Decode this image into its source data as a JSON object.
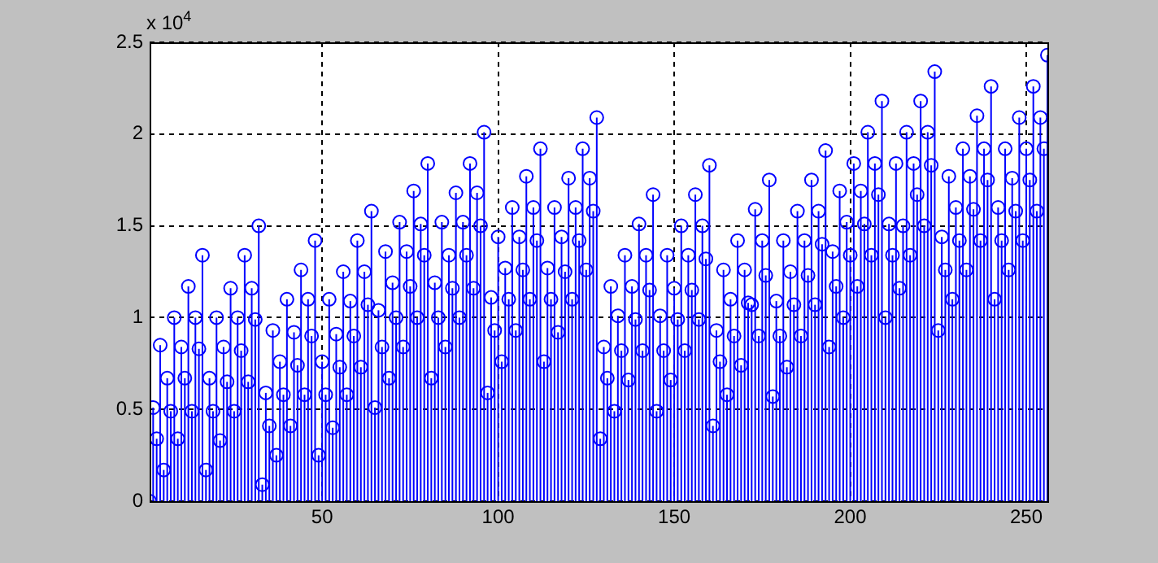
{
  "chart_data": {
    "type": "lollipop",
    "annotations": [
      "x 10$^{4}$"
    ],
    "x": [
      1,
      2,
      3,
      4,
      5,
      6,
      7,
      8,
      9,
      10,
      11,
      12,
      13,
      14,
      15,
      16,
      17,
      18,
      19,
      20,
      21,
      22,
      23,
      24,
      25,
      26,
      27,
      28,
      29,
      30,
      31,
      32,
      33,
      34,
      35,
      36,
      37,
      38,
      39,
      40,
      41,
      42,
      43,
      44,
      45,
      46,
      47,
      48,
      49,
      50,
      51,
      52,
      53,
      54,
      55,
      56,
      57,
      58,
      59,
      60,
      61,
      62,
      63,
      64,
      65,
      66,
      67,
      68,
      69,
      70,
      71,
      72,
      73,
      74,
      75,
      76,
      77,
      78,
      79,
      80,
      81,
      82,
      83,
      84,
      85,
      86,
      87,
      88,
      89,
      90,
      91,
      92,
      93,
      94,
      95,
      96,
      97,
      98,
      99,
      100,
      101,
      102,
      103,
      104,
      105,
      106,
      107,
      108,
      109,
      110,
      111,
      112,
      113,
      114,
      115,
      116,
      117,
      118,
      119,
      120,
      121,
      122,
      123,
      124,
      125,
      126,
      127,
      128,
      129,
      130,
      131,
      132,
      133,
      134,
      135,
      136,
      137,
      138,
      139,
      140,
      141,
      142,
      143,
      144,
      145,
      146,
      147,
      148,
      149,
      150,
      151,
      152,
      153,
      154,
      155,
      156,
      157,
      158,
      159,
      160,
      161,
      162,
      163,
      164,
      165,
      166,
      167,
      168,
      169,
      170,
      171,
      172,
      173,
      174,
      175,
      176,
      177,
      178,
      179,
      180,
      181,
      182,
      183,
      184,
      185,
      186,
      187,
      188,
      189,
      190,
      191,
      192,
      193,
      194,
      195,
      196,
      197,
      198,
      199,
      200,
      201,
      202,
      203,
      204,
      205,
      206,
      207,
      208,
      209,
      210,
      211,
      212,
      213,
      214,
      215,
      216,
      217,
      218,
      219,
      220,
      221,
      222,
      223,
      224,
      225,
      226,
      227,
      228,
      229,
      230,
      231,
      232,
      233,
      234,
      235,
      236,
      237,
      238,
      239,
      240,
      241,
      242,
      243,
      244,
      245,
      246,
      247,
      248,
      249,
      250,
      251,
      252,
      253,
      254,
      255,
      256
    ],
    "values": [
      0,
      0.51,
      0.34,
      0.85,
      0.17,
      0.67,
      0.49,
      1.0,
      0.34,
      0.84,
      0.67,
      1.17,
      0.49,
      1.0,
      0.83,
      1.34,
      0.17,
      0.67,
      0.49,
      1.0,
      0.33,
      0.84,
      0.65,
      1.16,
      0.49,
      1.0,
      0.82,
      1.34,
      0.65,
      1.16,
      0.99,
      1.5,
      0.09,
      0.59,
      0.41,
      0.93,
      0.25,
      0.76,
      0.58,
      1.1,
      0.41,
      0.92,
      0.74,
      1.26,
      0.58,
      1.1,
      0.9,
      1.42,
      0.25,
      0.76,
      0.58,
      1.1,
      0.4,
      0.91,
      0.73,
      1.25,
      0.58,
      1.09,
      0.9,
      1.42,
      0.73,
      1.25,
      1.07,
      1.58,
      0.51,
      1.04,
      0.84,
      1.36,
      0.67,
      1.19,
      1.0,
      1.52,
      0.84,
      1.36,
      1.17,
      1.69,
      1.0,
      1.51,
      1.34,
      1.84,
      0.67,
      1.19,
      1.0,
      1.52,
      0.84,
      1.34,
      1.16,
      1.68,
      1.0,
      1.52,
      1.34,
      1.84,
      1.16,
      1.68,
      1.5,
      2.01,
      0.59,
      1.11,
      0.93,
      1.44,
      0.76,
      1.27,
      1.1,
      1.6,
      0.93,
      1.44,
      1.26,
      1.77,
      1.1,
      1.6,
      1.42,
      1.92,
      0.76,
      1.27,
      1.1,
      1.6,
      0.92,
      1.44,
      1.25,
      1.76,
      1.1,
      1.6,
      1.42,
      1.92,
      1.26,
      1.76,
      1.58,
      2.09,
      0.34,
      0.84,
      0.67,
      1.17,
      0.49,
      1.01,
      0.82,
      1.34,
      0.66,
      1.17,
      0.99,
      1.51,
      0.82,
      1.34,
      1.15,
      1.67,
      0.49,
      1.01,
      0.82,
      1.34,
      0.66,
      1.16,
      0.99,
      1.5,
      0.82,
      1.34,
      1.15,
      1.67,
      0.99,
      1.5,
      1.32,
      1.83,
      0.41,
      0.93,
      0.76,
      1.26,
      0.58,
      1.1,
      0.9,
      1.42,
      0.74,
      1.26,
      1.08,
      1.07,
      1.59,
      0.9,
      1.42,
      1.23,
      1.75,
      0.57,
      1.09,
      0.9,
      1.42,
      0.73,
      1.25,
      1.07,
      1.58,
      0.9,
      1.42,
      1.23,
      1.75,
      1.07,
      1.58,
      1.4,
      1.91,
      0.84,
      1.36,
      1.17,
      1.69,
      1.0,
      1.52,
      1.34,
      1.84,
      1.17,
      1.69,
      1.51,
      2.01,
      1.34,
      1.84,
      1.67,
      2.18,
      1.0,
      1.51,
      1.34,
      1.84,
      1.16,
      1.5,
      2.01,
      1.34,
      1.84,
      1.67,
      2.18,
      1.5,
      2.01,
      1.83,
      2.34,
      0.93,
      1.44,
      1.26,
      1.77,
      1.1,
      1.6,
      1.42,
      1.92,
      1.26,
      1.77,
      1.59,
      2.1,
      1.42,
      1.92,
      1.75,
      2.26,
      1.1,
      1.6,
      1.42,
      1.92,
      1.26,
      1.76,
      1.58,
      2.09,
      1.42,
      1.92,
      1.75,
      2.26,
      1.58,
      2.09,
      1.92,
      2.43
    ],
    "color": "#0000ff",
    "marker": "circle",
    "xlim": [
      1,
      256
    ],
    "xticks": [
      50,
      100,
      150,
      200,
      250
    ],
    "ylim": [
      0,
      2.5
    ],
    "yticks": [
      0,
      0.5,
      1,
      1.5,
      2,
      2.5
    ],
    "grid": true
  }
}
